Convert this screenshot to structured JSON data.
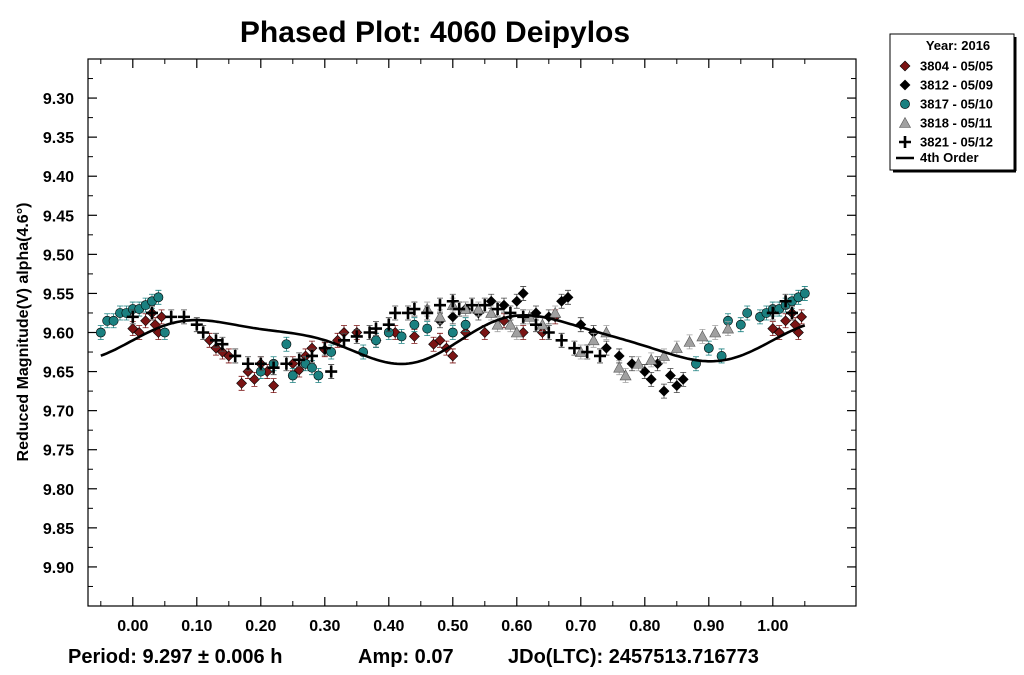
{
  "chart_data": {
    "type": "scatter",
    "title": "Phased Plot: 4060 Deipylos",
    "xlabel": "",
    "ylabel": "Reduced Magnitude(V) alpha(4.6°)",
    "xlim": [
      -0.07,
      1.13
    ],
    "ylim": [
      9.95,
      9.25
    ],
    "y_inverted": true,
    "x_ticks": [
      "0.00",
      "0.10",
      "0.20",
      "0.30",
      "0.40",
      "0.50",
      "0.60",
      "0.70",
      "0.80",
      "0.90",
      "1.00"
    ],
    "y_ticks": [
      "9.30",
      "9.35",
      "9.40",
      "9.45",
      "9.50",
      "9.55",
      "9.60",
      "9.65",
      "9.70",
      "9.75",
      "9.80",
      "9.85",
      "9.90"
    ],
    "grid": false,
    "legend": {
      "placement": "top-right-outside",
      "title": "Year: 2016",
      "fit_label": "4th Order"
    },
    "series": [
      {
        "name": "3804 - 05/05",
        "marker": "diamond",
        "color": "#7a1414",
        "points": [
          [
            0.0,
            9.595
          ],
          [
            0.01,
            9.6
          ],
          [
            0.02,
            9.585
          ],
          [
            0.03,
            9.575
          ],
          [
            0.035,
            9.59
          ],
          [
            0.04,
            9.6
          ],
          [
            0.045,
            9.58
          ],
          [
            0.12,
            9.61
          ],
          [
            0.13,
            9.62
          ],
          [
            0.14,
            9.625
          ],
          [
            0.15,
            9.63
          ],
          [
            0.17,
            9.665
          ],
          [
            0.18,
            9.65
          ],
          [
            0.19,
            9.66
          ],
          [
            0.2,
            9.64
          ],
          [
            0.21,
            9.65
          ],
          [
            0.22,
            9.668
          ],
          [
            0.25,
            9.64
          ],
          [
            0.26,
            9.648
          ],
          [
            0.27,
            9.63
          ],
          [
            0.28,
            9.62
          ],
          [
            0.3,
            9.622
          ],
          [
            0.32,
            9.61
          ],
          [
            0.33,
            9.6
          ],
          [
            0.35,
            9.6
          ],
          [
            0.38,
            9.61
          ],
          [
            0.41,
            9.6
          ],
          [
            0.44,
            9.605
          ],
          [
            0.47,
            9.615
          ],
          [
            0.48,
            9.61
          ],
          [
            0.49,
            9.62
          ],
          [
            0.5,
            9.63
          ],
          [
            0.52,
            9.6
          ],
          [
            0.55,
            9.6
          ],
          [
            0.58,
            9.585
          ],
          [
            0.61,
            9.6
          ],
          [
            0.64,
            9.6
          ],
          [
            0.66,
            9.58
          ],
          [
            1.0,
            9.595
          ],
          [
            1.01,
            9.6
          ],
          [
            1.02,
            9.585
          ],
          [
            1.03,
            9.575
          ],
          [
            1.035,
            9.59
          ],
          [
            1.04,
            9.6
          ],
          [
            1.045,
            9.58
          ]
        ]
      },
      {
        "name": "3812 - 05/09",
        "marker": "diamond",
        "color": "#000000",
        "points": [
          [
            0.48,
            9.585
          ],
          [
            0.5,
            9.58
          ],
          [
            0.52,
            9.57
          ],
          [
            0.54,
            9.575
          ],
          [
            0.56,
            9.56
          ],
          [
            0.58,
            9.565
          ],
          [
            0.6,
            9.56
          ],
          [
            0.61,
            9.55
          ],
          [
            0.63,
            9.575
          ],
          [
            0.65,
            9.58
          ],
          [
            0.67,
            9.56
          ],
          [
            0.68,
            9.555
          ],
          [
            0.7,
            9.59
          ],
          [
            0.72,
            9.6
          ],
          [
            0.74,
            9.62
          ],
          [
            0.76,
            9.63
          ],
          [
            0.78,
            9.64
          ],
          [
            0.8,
            9.65
          ],
          [
            0.81,
            9.66
          ],
          [
            0.82,
            9.64
          ],
          [
            0.83,
            9.675
          ],
          [
            0.84,
            9.655
          ],
          [
            0.85,
            9.668
          ],
          [
            0.86,
            9.66
          ]
        ]
      },
      {
        "name": "3817 - 05/10",
        "marker": "circle",
        "color": "#1b8080",
        "points": [
          [
            -0.05,
            9.6
          ],
          [
            -0.04,
            9.585
          ],
          [
            -0.03,
            9.585
          ],
          [
            -0.02,
            9.575
          ],
          [
            -0.01,
            9.575
          ],
          [
            0.0,
            9.57
          ],
          [
            0.01,
            9.57
          ],
          [
            0.02,
            9.565
          ],
          [
            0.03,
            9.56
          ],
          [
            0.04,
            9.555
          ],
          [
            0.05,
            9.6
          ],
          [
            0.2,
            9.65
          ],
          [
            0.22,
            9.64
          ],
          [
            0.24,
            9.615
          ],
          [
            0.25,
            9.655
          ],
          [
            0.27,
            9.64
          ],
          [
            0.28,
            9.645
          ],
          [
            0.29,
            9.655
          ],
          [
            0.31,
            9.625
          ],
          [
            0.36,
            9.625
          ],
          [
            0.38,
            9.61
          ],
          [
            0.4,
            9.6
          ],
          [
            0.42,
            9.605
          ],
          [
            0.44,
            9.59
          ],
          [
            0.46,
            9.595
          ],
          [
            0.5,
            9.6
          ],
          [
            0.52,
            9.59
          ],
          [
            0.88,
            9.64
          ],
          [
            0.9,
            9.62
          ],
          [
            0.92,
            9.63
          ],
          [
            0.93,
            9.585
          ],
          [
            0.95,
            9.59
          ],
          [
            0.96,
            9.575
          ],
          [
            0.98,
            9.58
          ],
          [
            0.99,
            9.575
          ],
          [
            1.0,
            9.57
          ],
          [
            1.01,
            9.57
          ],
          [
            1.02,
            9.565
          ],
          [
            1.03,
            9.56
          ],
          [
            1.04,
            9.555
          ],
          [
            1.05,
            9.55
          ]
        ]
      },
      {
        "name": "3818 - 05/11",
        "marker": "triangle",
        "color": "#a0a0a0",
        "points": [
          [
            0.46,
            9.57
          ],
          [
            0.48,
            9.58
          ],
          [
            0.5,
            9.565
          ],
          [
            0.52,
            9.57
          ],
          [
            0.54,
            9.57
          ],
          [
            0.56,
            9.575
          ],
          [
            0.57,
            9.59
          ],
          [
            0.59,
            9.59
          ],
          [
            0.6,
            9.6
          ],
          [
            0.62,
            9.58
          ],
          [
            0.64,
            9.59
          ],
          [
            0.66,
            9.575
          ],
          [
            0.7,
            9.625
          ],
          [
            0.72,
            9.61
          ],
          [
            0.74,
            9.6
          ],
          [
            0.76,
            9.645
          ],
          [
            0.77,
            9.655
          ],
          [
            0.79,
            9.64
          ],
          [
            0.81,
            9.635
          ],
          [
            0.83,
            9.63
          ],
          [
            0.85,
            9.62
          ],
          [
            0.87,
            9.612
          ],
          [
            0.89,
            9.605
          ],
          [
            0.91,
            9.6
          ],
          [
            0.93,
            9.595
          ]
        ]
      },
      {
        "name": "3821 - 05/12",
        "marker": "plus",
        "color": "#000000",
        "points": [
          [
            0.0,
            9.58
          ],
          [
            0.03,
            9.575
          ],
          [
            0.06,
            9.58
          ],
          [
            0.08,
            9.58
          ],
          [
            0.1,
            9.59
          ],
          [
            0.11,
            9.6
          ],
          [
            0.13,
            9.61
          ],
          [
            0.14,
            9.615
          ],
          [
            0.16,
            9.63
          ],
          [
            0.18,
            9.64
          ],
          [
            0.2,
            9.64
          ],
          [
            0.22,
            9.645
          ],
          [
            0.24,
            9.64
          ],
          [
            0.26,
            9.635
          ],
          [
            0.28,
            9.63
          ],
          [
            0.3,
            9.62
          ],
          [
            0.31,
            9.65
          ],
          [
            0.33,
            9.61
          ],
          [
            0.35,
            9.605
          ],
          [
            0.37,
            9.6
          ],
          [
            0.38,
            9.595
          ],
          [
            0.4,
            9.59
          ],
          [
            0.41,
            9.575
          ],
          [
            0.43,
            9.575
          ],
          [
            0.44,
            9.57
          ],
          [
            0.46,
            9.575
          ],
          [
            0.48,
            9.565
          ],
          [
            0.5,
            9.56
          ],
          [
            0.51,
            9.57
          ],
          [
            0.53,
            9.565
          ],
          [
            0.55,
            9.565
          ],
          [
            0.57,
            9.57
          ],
          [
            0.59,
            9.575
          ],
          [
            0.61,
            9.58
          ],
          [
            0.63,
            9.59
          ],
          [
            0.65,
            9.6
          ],
          [
            0.67,
            9.61
          ],
          [
            0.69,
            9.62
          ],
          [
            0.71,
            9.625
          ],
          [
            0.73,
            9.63
          ],
          [
            1.0,
            9.575
          ],
          [
            1.02,
            9.56
          ],
          [
            1.03,
            9.575
          ]
        ]
      }
    ],
    "fit_curve": {
      "name": "4th Order",
      "mean": 9.608,
      "harmonics": [
        {
          "n": 1,
          "cos": 0.0,
          "sin": 0.0
        },
        {
          "n": 2,
          "cos": 0.005,
          "sin": -0.026
        },
        {
          "n": 3,
          "cos": -0.003,
          "sin": 0.002
        },
        {
          "n": 4,
          "cos": 0.0,
          "sin": -0.006
        }
      ]
    }
  },
  "footer": {
    "period": "Period: 9.297 ± 0.006 h",
    "amp": "Amp: 0.07",
    "jdo": "JDo(LTC): 2457513.716773"
  },
  "colors": {
    "axis": "#000000",
    "background": "#ffffff"
  }
}
